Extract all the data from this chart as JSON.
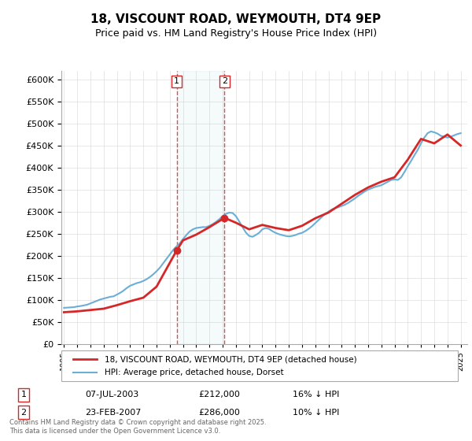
{
  "title": "18, VISCOUNT ROAD, WEYMOUTH, DT4 9EP",
  "subtitle": "Price paid vs. HM Land Registry's House Price Index (HPI)",
  "ylabel": "",
  "ylim": [
    0,
    620000
  ],
  "yticks": [
    0,
    50000,
    100000,
    150000,
    200000,
    250000,
    300000,
    350000,
    400000,
    450000,
    500000,
    550000,
    600000
  ],
  "hpi_color": "#6baed6",
  "price_color": "#d62728",
  "marker_bg": "#f0f8ff",
  "transaction1": {
    "date": "07-JUL-2003",
    "price": 212000,
    "hpi_diff": "16% ↓ HPI",
    "label": "1",
    "x_year": 2003.52
  },
  "transaction2": {
    "date": "23-FEB-2007",
    "price": 286000,
    "hpi_diff": "10% ↓ HPI",
    "label": "2",
    "x_year": 2007.14
  },
  "legend_label1": "18, VISCOUNT ROAD, WEYMOUTH, DT4 9EP (detached house)",
  "legend_label2": "HPI: Average price, detached house, Dorset",
  "footnote": "Contains HM Land Registry data © Crown copyright and database right 2025.\nThis data is licensed under the Open Government Licence v3.0.",
  "hpi_data": {
    "years": [
      1995,
      1995.25,
      1995.5,
      1995.75,
      1996,
      1996.25,
      1996.5,
      1996.75,
      1997,
      1997.25,
      1997.5,
      1997.75,
      1998,
      1998.25,
      1998.5,
      1998.75,
      1999,
      1999.25,
      1999.5,
      1999.75,
      2000,
      2000.25,
      2000.5,
      2000.75,
      2001,
      2001.25,
      2001.5,
      2001.75,
      2002,
      2002.25,
      2002.5,
      2002.75,
      2003,
      2003.25,
      2003.5,
      2003.75,
      2004,
      2004.25,
      2004.5,
      2004.75,
      2005,
      2005.25,
      2005.5,
      2005.75,
      2006,
      2006.25,
      2006.5,
      2006.75,
      2007,
      2007.25,
      2007.5,
      2007.75,
      2008,
      2008.25,
      2008.5,
      2008.75,
      2009,
      2009.25,
      2009.5,
      2009.75,
      2010,
      2010.25,
      2010.5,
      2010.75,
      2011,
      2011.25,
      2011.5,
      2011.75,
      2012,
      2012.25,
      2012.5,
      2012.75,
      2013,
      2013.25,
      2013.5,
      2013.75,
      2014,
      2014.25,
      2014.5,
      2014.75,
      2015,
      2015.25,
      2015.5,
      2015.75,
      2016,
      2016.25,
      2016.5,
      2016.75,
      2017,
      2017.25,
      2017.5,
      2017.75,
      2018,
      2018.25,
      2018.5,
      2018.75,
      2019,
      2019.25,
      2019.5,
      2019.75,
      2020,
      2020.25,
      2020.5,
      2020.75,
      2021,
      2021.25,
      2021.5,
      2021.75,
      2022,
      2022.25,
      2022.5,
      2022.75,
      2023,
      2023.25,
      2023.5,
      2023.75,
      2024,
      2024.25,
      2024.5,
      2024.75,
      2025
    ],
    "values": [
      82000,
      82500,
      83000,
      83500,
      85000,
      86000,
      87500,
      89000,
      92000,
      95000,
      98000,
      101000,
      103000,
      105000,
      107000,
      108000,
      112000,
      116000,
      121000,
      127000,
      132000,
      135000,
      138000,
      140000,
      143000,
      147000,
      152000,
      158000,
      165000,
      173000,
      183000,
      193000,
      203000,
      213000,
      221000,
      228000,
      238000,
      247000,
      255000,
      260000,
      263000,
      264000,
      265000,
      265000,
      268000,
      272000,
      277000,
      283000,
      290000,
      295000,
      298000,
      297000,
      290000,
      278000,
      265000,
      253000,
      245000,
      243000,
      247000,
      252000,
      260000,
      263000,
      261000,
      256000,
      252000,
      249000,
      247000,
      245000,
      244000,
      245000,
      247000,
      250000,
      252000,
      256000,
      261000,
      267000,
      274000,
      281000,
      288000,
      295000,
      300000,
      305000,
      308000,
      310000,
      313000,
      316000,
      320000,
      325000,
      330000,
      336000,
      341000,
      346000,
      350000,
      353000,
      356000,
      358000,
      360000,
      364000,
      368000,
      372000,
      373000,
      372000,
      378000,
      390000,
      403000,
      415000,
      428000,
      440000,
      455000,
      468000,
      478000,
      482000,
      480000,
      477000,
      472000,
      470000,
      468000,
      470000,
      473000,
      476000,
      478000
    ]
  },
  "price_data": {
    "years": [
      1995,
      1996,
      1997,
      1998,
      1999,
      2000,
      2001,
      2002,
      2003.52,
      2004,
      2005,
      2006,
      2007.14,
      2008,
      2009,
      2010,
      2011,
      2012,
      2013,
      2014,
      2015,
      2016,
      2017,
      2018,
      2019,
      2020,
      2021,
      2022,
      2023,
      2024,
      2025
    ],
    "values": [
      72000,
      74000,
      77000,
      80000,
      88000,
      97000,
      105000,
      130000,
      212000,
      235000,
      248000,
      265000,
      286000,
      275000,
      260000,
      270000,
      263000,
      258000,
      268000,
      285000,
      298000,
      318000,
      338000,
      355000,
      368000,
      378000,
      418000,
      465000,
      455000,
      475000,
      450000
    ]
  },
  "xtick_years": [
    1995,
    1996,
    1997,
    1998,
    1999,
    2000,
    2001,
    2002,
    2003,
    2004,
    2005,
    2006,
    2007,
    2008,
    2009,
    2010,
    2011,
    2012,
    2013,
    2014,
    2015,
    2016,
    2017,
    2018,
    2019,
    2020,
    2021,
    2022,
    2023,
    2024,
    2025
  ],
  "background_color": "#ffffff",
  "plot_bg_color": "#ffffff",
  "grid_color": "#dddddd"
}
